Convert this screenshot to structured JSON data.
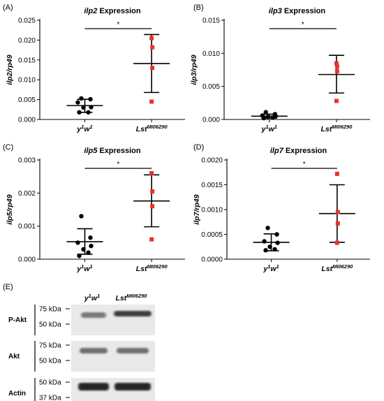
{
  "chart_data": [
    {
      "type": "scatter",
      "panel_label": "(A)",
      "title": {
        "gene": "ilp2",
        "suffix": "Expression"
      },
      "ylabel": "ilp2/rp49",
      "ylim": [
        0,
        0.025
      ],
      "yticks": [
        "0.000",
        "0.005",
        "0.010",
        "0.015",
        "0.020",
        "0.025"
      ],
      "significance": "*",
      "groups": [
        {
          "name": "y1w1",
          "base": "y",
          "sup1": "1",
          "mid": "w",
          "sup2": "1",
          "color": "#000000",
          "marker": "circle",
          "values": [
            0.0053,
            0.0051,
            0.0043,
            0.0031,
            0.003,
            0.0018,
            0.0018
          ],
          "mean": 0.0035,
          "sd_low": 0.0018,
          "sd_high": 0.0051
        },
        {
          "name": "LstMI06290",
          "base": "Lst",
          "sup1": "MI06290",
          "mid": "",
          "sup2": "",
          "color": "#e8322b",
          "marker": "square",
          "values": [
            0.0205,
            0.0182,
            0.013,
            0.0045
          ],
          "mean": 0.0141,
          "sd_low": 0.0068,
          "sd_high": 0.0214
        }
      ]
    },
    {
      "type": "scatter",
      "panel_label": "(B)",
      "title": {
        "gene": "ilp3",
        "suffix": "Expression"
      },
      "ylabel": "ilp3/rp49",
      "ylim": [
        0,
        0.015
      ],
      "yticks": [
        "0.000",
        "0.005",
        "0.010",
        "0.015"
      ],
      "significance": "*",
      "groups": [
        {
          "name": "y1w1",
          "base": "y",
          "sup1": "1",
          "mid": "w",
          "sup2": "1",
          "color": "#000000",
          "marker": "circle",
          "values": [
            0.0011,
            0.0008,
            0.0006,
            0.0005,
            0.0004,
            0.0003,
            0.0002
          ],
          "mean": 0.0005,
          "sd_low": 0.0002,
          "sd_high": 0.0008
        },
        {
          "name": "LstMI06290",
          "base": "Lst",
          "sup1": "MI06290",
          "mid": "",
          "sup2": "",
          "color": "#e8322b",
          "marker": "square",
          "values": [
            0.0085,
            0.008,
            0.0073,
            0.0028
          ],
          "mean": 0.0068,
          "sd_low": 0.004,
          "sd_high": 0.0097
        }
      ]
    },
    {
      "type": "scatter",
      "panel_label": "(C)",
      "title": {
        "gene": "ilp5",
        "suffix": "Expression"
      },
      "ylabel": "ilp5/rp49",
      "ylim": [
        0,
        0.003
      ],
      "yticks": [
        "0.000",
        "0.001",
        "0.002",
        "0.003"
      ],
      "significance": "*",
      "groups": [
        {
          "name": "y1w1",
          "base": "y",
          "sup1": "1",
          "mid": "w",
          "sup2": "1",
          "color": "#000000",
          "marker": "circle",
          "values": [
            0.0013,
            0.00065,
            0.0005,
            0.0004,
            0.0003,
            0.0002,
            0.0001
          ],
          "mean": 0.00053,
          "sd_low": 0.00015,
          "sd_high": 0.00092
        },
        {
          "name": "LstMI06290",
          "base": "Lst",
          "sup1": "MI06290",
          "mid": "",
          "sup2": "",
          "color": "#e8322b",
          "marker": "square",
          "values": [
            0.0026,
            0.00205,
            0.0016,
            0.0006
          ],
          "mean": 0.00176,
          "sd_low": 0.00098,
          "sd_high": 0.00255
        }
      ]
    },
    {
      "type": "scatter",
      "panel_label": "(D)",
      "title": {
        "gene": "ilp7",
        "suffix": "Expression"
      },
      "ylabel": "ilp7/rp49",
      "ylim": [
        0,
        0.002
      ],
      "yticks": [
        "0.0000",
        "0.0005",
        "0.0010",
        "0.0015",
        "0.0020"
      ],
      "significance": "*",
      "groups": [
        {
          "name": "y1w1",
          "base": "y",
          "sup1": "1",
          "mid": "w",
          "sup2": "1",
          "color": "#000000",
          "marker": "circle",
          "values": [
            0.00063,
            0.0005,
            0.00036,
            0.00033,
            0.00025,
            0.0002,
            0.00018
          ],
          "mean": 0.00034,
          "sd_low": 0.00017,
          "sd_high": 0.00051
        },
        {
          "name": "LstMI06290",
          "base": "Lst",
          "sup1": "MI06290",
          "mid": "",
          "sup2": "",
          "color": "#e8322b",
          "marker": "square",
          "values": [
            0.00172,
            0.00095,
            0.00072,
            0.00033
          ],
          "mean": 0.00092,
          "sd_low": 0.00034,
          "sd_high": 0.0015
        }
      ]
    }
  ],
  "blot": {
    "panel_label": "(E)",
    "lanes": [
      {
        "base": "y",
        "sup1": "1",
        "mid": "w",
        "sup2": "1"
      },
      {
        "base": "Lst",
        "sup1": "MI06290",
        "mid": "",
        "sup2": ""
      }
    ],
    "rows": [
      {
        "label": "P-Akt",
        "markers": [
          "75 kDa",
          "50 kDa"
        ]
      },
      {
        "label": "Akt",
        "markers": [
          "75 kDa",
          "50 kDa"
        ]
      },
      {
        "label": "Actin",
        "markers": [
          "50 kDa",
          "37 kDa"
        ]
      }
    ]
  }
}
